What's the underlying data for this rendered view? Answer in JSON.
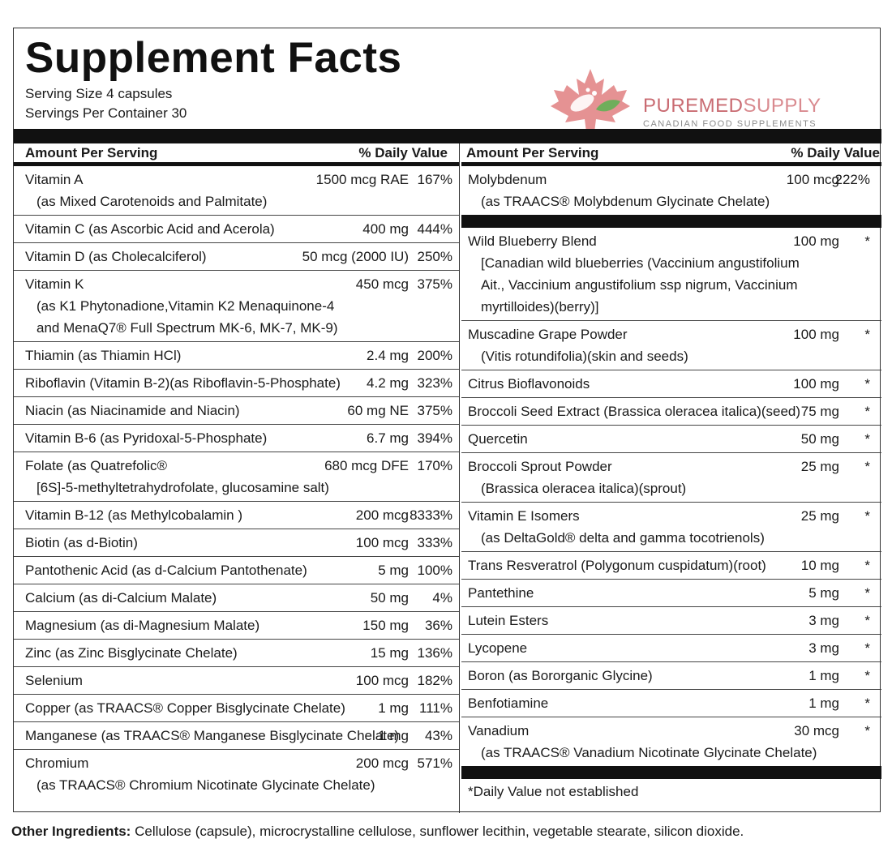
{
  "title": "Supplement Facts",
  "serving_size": "Serving Size 4 capsules",
  "servings_per_container": "Servings Per Container 30",
  "logo": {
    "name_part1": "PUREMED",
    "name_part2": "SUPPLY",
    "tagline": "CANADIAN FOOD SUPPLEMENTS",
    "colors": {
      "leaf": "#d9534f",
      "pure": "#c96b72",
      "supply": "#d98a8f",
      "tagline": "#8c8c8c"
    }
  },
  "header": {
    "amount_per_serving": "Amount Per Serving",
    "daily_value": "% Daily Value"
  },
  "left_rows": [
    {
      "name": "Vitamin A",
      "sub": "(as Mixed Carotenoids and Palmitate)",
      "amount": "1500 mcg RAE",
      "dv": "167%"
    },
    {
      "name": "Vitamin C (as Ascorbic Acid and Acerola)",
      "amount": "400 mg",
      "dv": "444%"
    },
    {
      "name": "Vitamin D (as Cholecalciferol)",
      "amount": "50 mcg (2000 IU)",
      "dv": "250%"
    },
    {
      "name": "Vitamin K",
      "sub": "(as K1 Phytonadione,Vitamin K2 Menaquinone-4",
      "sub2": "and MenaQ7® Full Spectrum MK-6, MK-7, MK-9)",
      "amount": "450 mcg",
      "dv": "375%"
    },
    {
      "name": "Thiamin (as Thiamin HCl)",
      "amount": "2.4 mg",
      "dv": "200%"
    },
    {
      "name": "Riboflavin (Vitamin B-2)(as Riboflavin-5-Phosphate)",
      "amount": "4.2 mg",
      "dv": "323%"
    },
    {
      "name": "Niacin (as Niacinamide and Niacin)",
      "amount": "60 mg NE",
      "dv": "375%"
    },
    {
      "name": "Vitamin B-6 (as Pyridoxal-5-Phosphate)",
      "amount": "6.7 mg",
      "dv": "394%"
    },
    {
      "name": "Folate (as Quatrefolic®",
      "sub": "[6S]-5-methyltetrahydrofolate, glucosamine salt)",
      "amount": "680 mcg DFE",
      "dv": "170%"
    },
    {
      "name": "Vitamin B-12 (as Methylcobalamin )",
      "amount": "200 mcg",
      "dv": "8333%"
    },
    {
      "name": "Biotin (as d-Biotin)",
      "amount": "100 mcg",
      "dv": "333%"
    },
    {
      "name": "Pantothenic Acid (as d-Calcium Pantothenate)",
      "amount": "5 mg",
      "dv": "100%"
    },
    {
      "name": "Calcium (as di-Calcium Malate)",
      "amount": "50 mg",
      "dv": "4%"
    },
    {
      "name": "Magnesium (as di-Magnesium Malate)",
      "amount": "150 mg",
      "dv": "36%"
    },
    {
      "name": "Zinc (as Zinc Bisglycinate Chelate)",
      "amount": "15 mg",
      "dv": "136%"
    },
    {
      "name": "Selenium",
      "amount": "100 mcg",
      "dv": "182%"
    },
    {
      "name": "Copper (as TRAACS® Copper Bisglycinate Chelate)",
      "amount": "1 mg",
      "dv": "111%"
    },
    {
      "name": "Manganese (as TRAACS® Manganese Bisglycinate Chelate)",
      "amount": "1 mg",
      "dv": "43%"
    },
    {
      "name": "Chromium",
      "sub": "(as TRAACS® Chromium Nicotinate Glycinate Chelate)",
      "amount": "200 mcg",
      "dv": "571%"
    }
  ],
  "right_top": {
    "name": "Molybdenum",
    "sub": "(as TRAACS® Molybdenum Glycinate Chelate)",
    "amount": "100 mcg",
    "dv": "222%"
  },
  "right_rows": [
    {
      "name": "Wild Blueberry Blend",
      "sub": "[Canadian wild blueberries (Vaccinium angustifolium",
      "sub2": "Ait., Vaccinium angustifolium ssp nigrum, Vaccinium",
      "sub3": "myrtilloides)(berry)]",
      "amount": "100 mg",
      "dv": "*"
    },
    {
      "name": "Muscadine Grape Powder",
      "sub": "(Vitis rotundifolia)(skin and seeds)",
      "amount": "100 mg",
      "dv": "*"
    },
    {
      "name": "Citrus Bioflavonoids",
      "amount": "100 mg",
      "dv": "*"
    },
    {
      "name": "Broccoli Seed Extract (Brassica oleracea italica)(seed)",
      "amount": "75 mg",
      "dv": "*"
    },
    {
      "name": "Quercetin",
      "amount": "50 mg",
      "dv": "*"
    },
    {
      "name": "Broccoli Sprout Powder",
      "sub": "(Brassica oleracea italica)(sprout)",
      "amount": "25 mg",
      "dv": "*"
    },
    {
      "name": "Vitamin E Isomers",
      "sub": "(as DeltaGold® delta and gamma tocotrienols)",
      "amount": "25 mg",
      "dv": "*"
    },
    {
      "name": "Trans Resveratrol (Polygonum cuspidatum)(root)",
      "amount": "10 mg",
      "dv": "*"
    },
    {
      "name": "Pantethine",
      "amount": "5 mg",
      "dv": "*"
    },
    {
      "name": "Lutein Esters",
      "amount": "3 mg",
      "dv": "*"
    },
    {
      "name": "Lycopene",
      "amount": "3 mg",
      "dv": "*"
    },
    {
      "name": "Boron (as Bororganic Glycine)",
      "amount": "1 mg",
      "dv": "*"
    },
    {
      "name": "Benfotiamine",
      "amount": "1 mg",
      "dv": "*"
    },
    {
      "name": "Vanadium",
      "sub": "(as TRAACS® Vanadium Nicotinate Glycinate Chelate)",
      "amount": "30 mcg",
      "dv": "*"
    }
  ],
  "footnote": "*Daily Value not established",
  "other_ingredients": {
    "label": "Other Ingredients:",
    "text": " Cellulose (capsule), microcrystalline cellulose, sunflower lecithin, vegetable stearate, silicon dioxide."
  }
}
